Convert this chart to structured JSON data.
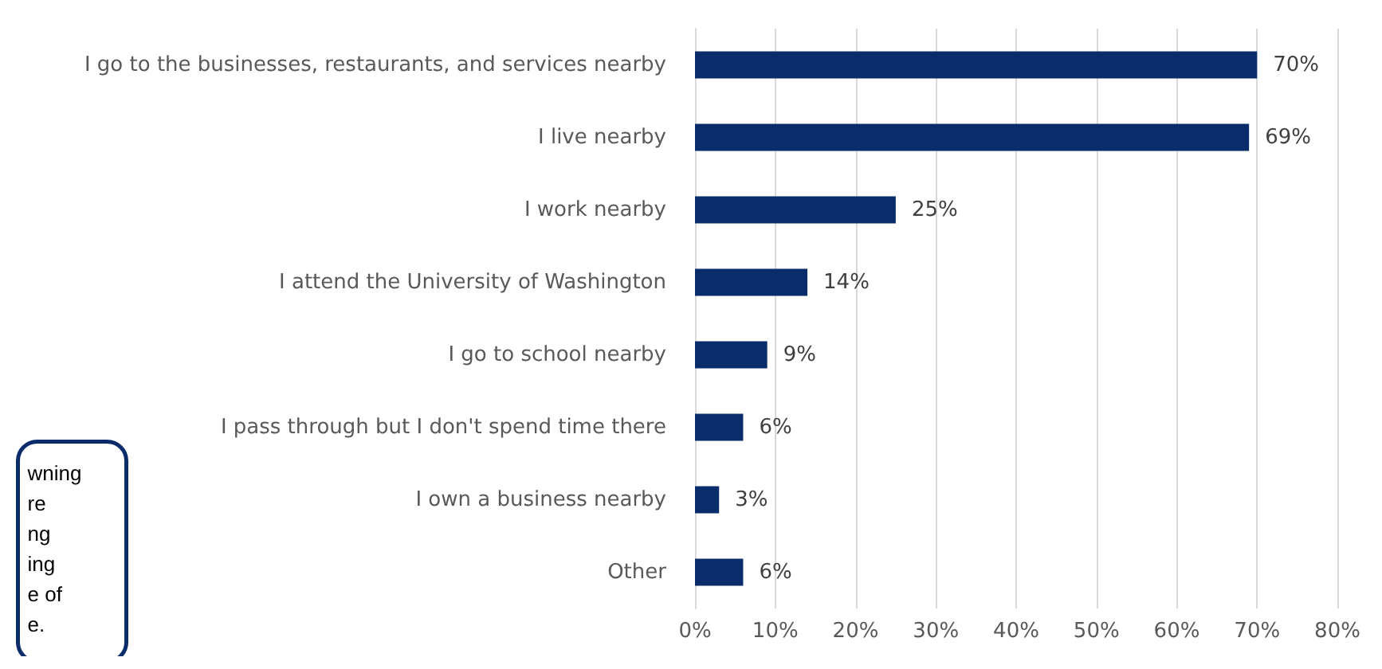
{
  "chart_data": {
    "type": "bar",
    "orientation": "horizontal",
    "categories": [
      "I go to the businesses, restaurants, and services nearby",
      "I live nearby",
      "I work nearby",
      "I attend the University of Washington",
      "I go to school nearby",
      "I pass through but I don't spend time there",
      "I own a business nearby",
      "Other"
    ],
    "values": [
      70,
      69,
      25,
      14,
      9,
      6,
      3,
      6
    ],
    "value_labels": [
      "70%",
      "69%",
      "25%",
      "14%",
      "9%",
      "6%",
      "3%",
      "6%"
    ],
    "color": "#0b2c6b",
    "xlim": [
      0,
      80
    ],
    "xticks": [
      {
        "value": 0,
        "label": "0%"
      },
      {
        "value": 10,
        "label": "10%"
      },
      {
        "value": 20,
        "label": "20%"
      },
      {
        "value": 30,
        "label": "30%"
      },
      {
        "value": 40,
        "label": "40%"
      },
      {
        "value": 50,
        "label": "50%"
      },
      {
        "value": 60,
        "label": "60%"
      },
      {
        "value": 70,
        "label": "70%"
      },
      {
        "value": 80,
        "label": "80%"
      }
    ],
    "grid": "x",
    "annotations": [
      "wning\nre\nng\ning\ne of\ne."
    ]
  }
}
